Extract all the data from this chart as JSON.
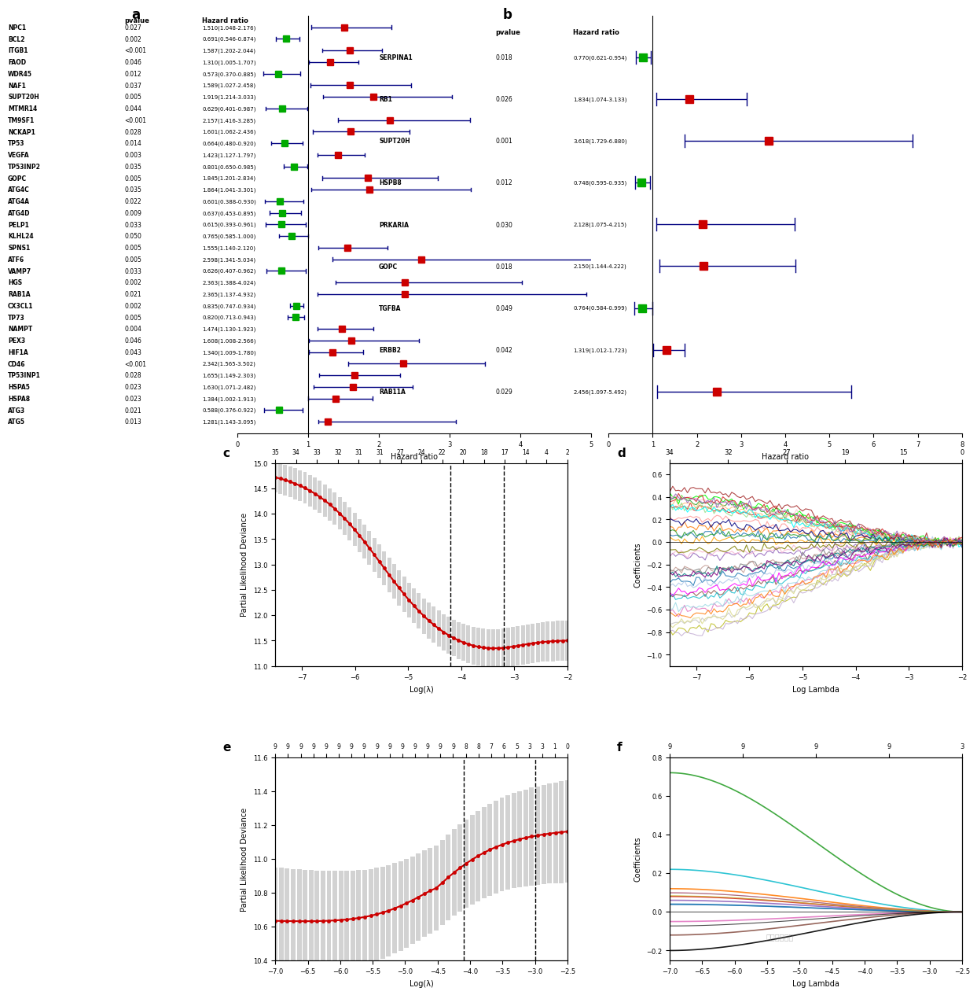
{
  "panel_a": {
    "genes": [
      "NPC1",
      "BCL2",
      "ITGB1",
      "FAOD",
      "WDR45",
      "NAF1",
      "SUPT20H",
      "MTMR14",
      "TM9SF1",
      "NCKAP1",
      "TP53",
      "VEGFA",
      "TP53INP2",
      "GOPC",
      "ATG4C",
      "ATG4A",
      "ATG4D",
      "PELP1",
      "KLHL24",
      "SPNS1",
      "ATF6",
      "VAMP7",
      "HGS",
      "RAB1A",
      "CX3CL1",
      "TP73",
      "NAMPT",
      "PEX3",
      "HIF1A",
      "CD46",
      "TP53INP1",
      "HSPA5",
      "HSPA8",
      "ATG3",
      "ATG5"
    ],
    "pvalues": [
      "0.027",
      "0.002",
      "<0.001",
      "0.046",
      "0.012",
      "0.037",
      "0.005",
      "0.044",
      "<0.001",
      "0.028",
      "0.014",
      "0.003",
      "0.035",
      "0.005",
      "0.035",
      "0.022",
      "0.009",
      "0.033",
      "0.050",
      "0.005",
      "0.005",
      "0.033",
      "0.002",
      "0.021",
      "0.002",
      "0.005",
      "0.004",
      "0.046",
      "0.043",
      "<0.001",
      "0.028",
      "0.023",
      "0.023",
      "0.021",
      "0.013"
    ],
    "hr_text": [
      "1.510(1.048-2.176)",
      "0.691(0.546-0.874)",
      "1.587(1.202-2.044)",
      "1.310(1.005-1.707)",
      "0.573(0.370-0.885)",
      "1.589(1.027-2.458)",
      "1.919(1.214-3.033)",
      "0.629(0.401-0.987)",
      "2.157(1.416-3.285)",
      "1.601(1.062-2.436)",
      "0.664(0.480-0.920)",
      "1.423(1.127-1.797)",
      "0.801(0.650-0.985)",
      "1.845(1.201-2.834)",
      "1.864(1.041-3.301)",
      "0.601(0.388-0.930)",
      "0.637(0.453-0.895)",
      "0.615(0.393-0.961)",
      "0.765(0.585-1.000)",
      "1.555(1.140-2.120)",
      "2.598(1.341-5.034)",
      "0.626(0.407-0.962)",
      "2.363(1.388-4.024)",
      "2.365(1.137-4.932)",
      "0.835(0.747-0.934)",
      "0.820(0.713-0.943)",
      "1.474(1.130-1.923)",
      "1.608(1.008-2.566)",
      "1.340(1.009-1.780)",
      "2.342(1.565-3.502)",
      "1.655(1.149-2.303)",
      "1.630(1.071-2.482)",
      "1.384(1.002-1.913)",
      "0.588(0.376-0.922)",
      "1.281(1.143-3.095)"
    ],
    "hr": [
      1.51,
      0.691,
      1.587,
      1.31,
      0.573,
      1.589,
      1.919,
      0.629,
      2.157,
      1.601,
      0.664,
      1.423,
      0.801,
      1.845,
      1.864,
      0.601,
      0.637,
      0.615,
      0.765,
      1.555,
      2.598,
      0.626,
      2.363,
      2.365,
      0.835,
      0.82,
      1.474,
      1.608,
      1.34,
      2.342,
      1.655,
      1.63,
      1.384,
      0.588,
      1.281
    ],
    "ci_low": [
      1.048,
      0.546,
      1.202,
      1.005,
      0.37,
      1.027,
      1.214,
      0.401,
      1.416,
      1.062,
      0.48,
      1.127,
      0.65,
      1.201,
      1.041,
      0.388,
      0.453,
      0.393,
      0.585,
      1.14,
      1.341,
      0.407,
      1.388,
      1.137,
      0.747,
      0.713,
      1.13,
      1.008,
      1.009,
      1.565,
      1.149,
      1.071,
      1.002,
      0.376,
      1.143
    ],
    "ci_high": [
      2.176,
      0.874,
      2.044,
      1.707,
      0.885,
      2.458,
      3.033,
      0.987,
      3.285,
      2.436,
      0.92,
      1.797,
      0.985,
      2.834,
      3.301,
      0.93,
      0.895,
      0.961,
      1.0,
      2.12,
      5.034,
      0.962,
      4.024,
      4.932,
      0.934,
      0.943,
      1.923,
      2.566,
      1.78,
      3.502,
      2.303,
      2.482,
      1.913,
      0.922,
      3.095
    ]
  },
  "panel_b": {
    "genes": [
      "SERPINA1",
      "RB1",
      "SUPT20H",
      "HSPB8",
      "PRKARIA",
      "GOPC",
      "TGFBA",
      "ERBB2",
      "RAB11A"
    ],
    "pvalues": [
      "0.018",
      "0.026",
      "0.001",
      "0.012",
      "0.030",
      "0.018",
      "0.049",
      "0.042",
      "0.029"
    ],
    "hr_text": [
      "0.770(0.621-0.954)",
      "1.834(1.074-3.133)",
      "3.618(1.729-6.880)",
      "0.748(0.595-0.935)",
      "2.128(1.075-4.215)",
      "2.150(1.144-4.222)",
      "0.764(0.584-0.999)",
      "1.319(1.012-1.723)",
      "2.456(1.097-5.492)"
    ],
    "hr": [
      0.77,
      1.834,
      3.618,
      0.748,
      2.128,
      2.15,
      0.764,
      1.319,
      2.456
    ],
    "ci_low": [
      0.621,
      1.074,
      1.729,
      0.595,
      1.075,
      1.144,
      0.584,
      1.012,
      1.097
    ],
    "ci_high": [
      0.954,
      3.133,
      6.88,
      0.935,
      4.215,
      4.222,
      0.999,
      1.723,
      5.492
    ]
  },
  "panel_c": {
    "title": "",
    "xlabel": "Log(λ)",
    "ylabel": "Partial Likelihood Deviance",
    "top_ticks": [
      "35",
      "34",
      "33",
      "32",
      "31",
      "31",
      "27",
      "24",
      "22",
      "20",
      "18",
      "17",
      "14",
      "4",
      "2"
    ],
    "xmin": -7.5,
    "xmax": -2.0,
    "ymin": 11.0,
    "ymax": 15.0,
    "vline1": -4.2,
    "vline2": -3.2,
    "curve_color": "#cc0000"
  },
  "panel_d": {
    "title": "",
    "xlabel": "Log Lambda",
    "ylabel": "Coefficients",
    "top_ticks": [
      "34",
      "32",
      "27",
      "19",
      "15",
      "0"
    ],
    "xmin": -7.5,
    "xmax": -2.0,
    "ymin": -1.1,
    "ymax": 0.7
  },
  "panel_e": {
    "title": "",
    "xlabel": "Log(λ)",
    "ylabel": "Partial Likelihood Deviance",
    "top_ticks": [
      "9",
      "9",
      "9",
      "9",
      "9",
      "9",
      "9",
      "9",
      "9",
      "9",
      "9",
      "9",
      "9",
      "9",
      "9",
      "8",
      "8",
      "7",
      "6",
      "5",
      "3",
      "3",
      "1",
      "0"
    ],
    "xmin": -7.0,
    "xmax": -2.5,
    "ymin": 10.4,
    "ymax": 11.6,
    "vline1": -4.1,
    "vline2": -3.0,
    "curve_color": "#cc0000"
  },
  "panel_f": {
    "title": "",
    "xlabel": "Log Lambda",
    "ylabel": "Coefficients",
    "top_ticks": [
      "9",
      "9",
      "9",
      "9",
      "3"
    ],
    "xmin": -7.0,
    "xmax": -2.5,
    "ymin": -0.25,
    "ymax": 0.8
  },
  "bg_color": "#ffffff"
}
